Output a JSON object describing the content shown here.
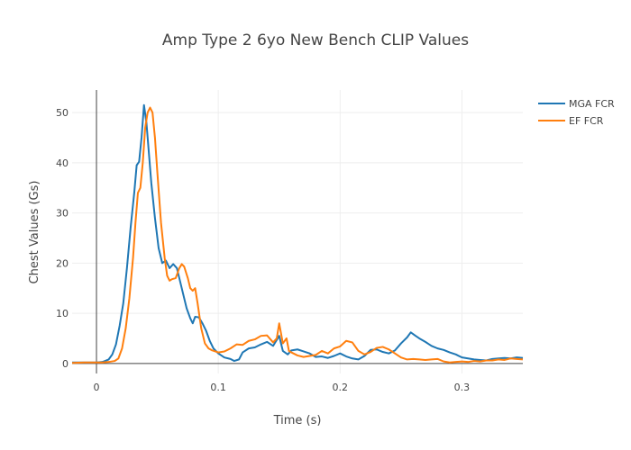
{
  "chart_data": {
    "type": "line",
    "title": "Amp Type 2 6yo New Bench CLIP Values",
    "xlabel": "Time (s)",
    "ylabel": "Chest Values (Gs)",
    "xlim": [
      -0.02,
      0.35
    ],
    "ylim": [
      -2,
      54.5
    ],
    "x_ticks": [
      0,
      0.1,
      0.2,
      0.3
    ],
    "x_tick_labels": [
      "0",
      "0.1",
      "0.2",
      "0.3"
    ],
    "y_ticks": [
      0,
      10,
      20,
      30,
      40,
      50
    ],
    "y_tick_labels": [
      "0",
      "10",
      "20",
      "30",
      "40",
      "50"
    ],
    "grid": true,
    "legend_position": "top-right",
    "series": [
      {
        "name": "MGA FCR",
        "color": "#1f77b4",
        "points": [
          [
            -0.02,
            0.2
          ],
          [
            -0.01,
            0.2
          ],
          [
            0,
            0.2
          ],
          [
            0.005,
            0.3
          ],
          [
            0.01,
            0.8
          ],
          [
            0.013,
            1.8
          ],
          [
            0.016,
            3.8
          ],
          [
            0.019,
            7.5
          ],
          [
            0.022,
            12
          ],
          [
            0.025,
            19
          ],
          [
            0.028,
            27
          ],
          [
            0.031,
            34
          ],
          [
            0.033,
            39.5
          ],
          [
            0.035,
            40.2
          ],
          [
            0.037,
            45
          ],
          [
            0.039,
            51.5
          ],
          [
            0.041,
            48
          ],
          [
            0.043,
            42
          ],
          [
            0.045,
            36
          ],
          [
            0.048,
            29
          ],
          [
            0.051,
            23
          ],
          [
            0.054,
            20
          ],
          [
            0.057,
            20.5
          ],
          [
            0.06,
            19
          ],
          [
            0.063,
            19.8
          ],
          [
            0.066,
            19
          ],
          [
            0.068,
            17
          ],
          [
            0.071,
            14
          ],
          [
            0.074,
            11
          ],
          [
            0.077,
            9
          ],
          [
            0.079,
            8
          ],
          [
            0.081,
            9.3
          ],
          [
            0.084,
            9.2
          ],
          [
            0.087,
            8
          ],
          [
            0.09,
            6.5
          ],
          [
            0.093,
            4.5
          ],
          [
            0.096,
            3
          ],
          [
            0.1,
            2
          ],
          [
            0.105,
            1.2
          ],
          [
            0.11,
            0.9
          ],
          [
            0.113,
            0.5
          ],
          [
            0.117,
            0.8
          ],
          [
            0.12,
            2.2
          ],
          [
            0.125,
            3
          ],
          [
            0.13,
            3.2
          ],
          [
            0.135,
            3.8
          ],
          [
            0.14,
            4.3
          ],
          [
            0.145,
            3.5
          ],
          [
            0.15,
            5.5
          ],
          [
            0.153,
            2.5
          ],
          [
            0.157,
            1.8
          ],
          [
            0.16,
            2.6
          ],
          [
            0.165,
            2.8
          ],
          [
            0.17,
            2.4
          ],
          [
            0.175,
            2
          ],
          [
            0.18,
            1.3
          ],
          [
            0.185,
            1.4
          ],
          [
            0.19,
            1.1
          ],
          [
            0.195,
            1.5
          ],
          [
            0.2,
            2
          ],
          [
            0.205,
            1.4
          ],
          [
            0.21,
            1
          ],
          [
            0.215,
            0.8
          ],
          [
            0.22,
            1.5
          ],
          [
            0.225,
            2.7
          ],
          [
            0.23,
            2.8
          ],
          [
            0.235,
            2.3
          ],
          [
            0.24,
            2
          ],
          [
            0.245,
            2.6
          ],
          [
            0.25,
            4
          ],
          [
            0.255,
            5.2
          ],
          [
            0.258,
            6.2
          ],
          [
            0.262,
            5.5
          ],
          [
            0.265,
            5
          ],
          [
            0.27,
            4.3
          ],
          [
            0.275,
            3.5
          ],
          [
            0.28,
            3
          ],
          [
            0.285,
            2.7
          ],
          [
            0.29,
            2.2
          ],
          [
            0.295,
            1.8
          ],
          [
            0.3,
            1.2
          ],
          [
            0.305,
            1
          ],
          [
            0.31,
            0.8
          ],
          [
            0.315,
            0.7
          ],
          [
            0.32,
            0.6
          ],
          [
            0.325,
            0.9
          ],
          [
            0.33,
            1
          ],
          [
            0.335,
            1.1
          ],
          [
            0.34,
            1
          ],
          [
            0.345,
            1.2
          ],
          [
            0.35,
            1.1
          ]
        ]
      },
      {
        "name": "EF FCR",
        "color": "#ff7f0e",
        "points": [
          [
            -0.02,
            0.1
          ],
          [
            -0.01,
            0.2
          ],
          [
            0,
            0.2
          ],
          [
            0.005,
            0.2
          ],
          [
            0.01,
            0.3
          ],
          [
            0.015,
            0.5
          ],
          [
            0.018,
            1
          ],
          [
            0.021,
            3
          ],
          [
            0.024,
            7
          ],
          [
            0.027,
            13
          ],
          [
            0.03,
            21
          ],
          [
            0.032,
            28
          ],
          [
            0.034,
            34
          ],
          [
            0.036,
            35
          ],
          [
            0.038,
            40
          ],
          [
            0.04,
            47
          ],
          [
            0.042,
            50
          ],
          [
            0.044,
            51
          ],
          [
            0.046,
            50
          ],
          [
            0.048,
            45
          ],
          [
            0.05,
            38
          ],
          [
            0.053,
            28
          ],
          [
            0.056,
            21
          ],
          [
            0.058,
            17.5
          ],
          [
            0.06,
            16.5
          ],
          [
            0.062,
            16.8
          ],
          [
            0.065,
            17
          ],
          [
            0.068,
            19
          ],
          [
            0.07,
            19.8
          ],
          [
            0.072,
            19.3
          ],
          [
            0.075,
            17
          ],
          [
            0.077,
            15
          ],
          [
            0.079,
            14.5
          ],
          [
            0.081,
            15
          ],
          [
            0.083,
            12
          ],
          [
            0.086,
            7
          ],
          [
            0.089,
            4
          ],
          [
            0.092,
            3
          ],
          [
            0.095,
            2.6
          ],
          [
            0.1,
            2.2
          ],
          [
            0.105,
            2.4
          ],
          [
            0.11,
            3
          ],
          [
            0.115,
            3.8
          ],
          [
            0.12,
            3.7
          ],
          [
            0.125,
            4.5
          ],
          [
            0.13,
            4.8
          ],
          [
            0.135,
            5.5
          ],
          [
            0.14,
            5.6
          ],
          [
            0.145,
            4.2
          ],
          [
            0.148,
            5
          ],
          [
            0.15,
            8
          ],
          [
            0.153,
            4
          ],
          [
            0.156,
            5
          ],
          [
            0.158,
            2.5
          ],
          [
            0.16,
            2.2
          ],
          [
            0.165,
            1.6
          ],
          [
            0.17,
            1.3
          ],
          [
            0.175,
            1.5
          ],
          [
            0.18,
            1.7
          ],
          [
            0.185,
            2.5
          ],
          [
            0.19,
            2
          ],
          [
            0.195,
            3
          ],
          [
            0.2,
            3.4
          ],
          [
            0.205,
            4.5
          ],
          [
            0.21,
            4.2
          ],
          [
            0.215,
            2.5
          ],
          [
            0.22,
            1.8
          ],
          [
            0.225,
            2.3
          ],
          [
            0.23,
            3.1
          ],
          [
            0.235,
            3.3
          ],
          [
            0.24,
            2.8
          ],
          [
            0.245,
            2
          ],
          [
            0.25,
            1.2
          ],
          [
            0.255,
            0.8
          ],
          [
            0.26,
            0.9
          ],
          [
            0.265,
            0.8
          ],
          [
            0.27,
            0.7
          ],
          [
            0.275,
            0.8
          ],
          [
            0.28,
            0.9
          ],
          [
            0.285,
            0.4
          ],
          [
            0.29,
            0.2
          ],
          [
            0.295,
            0.3
          ],
          [
            0.3,
            0.4
          ],
          [
            0.305,
            0.3
          ],
          [
            0.31,
            0.5
          ],
          [
            0.315,
            0.4
          ],
          [
            0.32,
            0.6
          ],
          [
            0.325,
            0.6
          ],
          [
            0.33,
            0.8
          ],
          [
            0.335,
            0.7
          ],
          [
            0.34,
            1
          ],
          [
            0.345,
            0.9
          ],
          [
            0.35,
            0.8
          ]
        ]
      }
    ]
  }
}
